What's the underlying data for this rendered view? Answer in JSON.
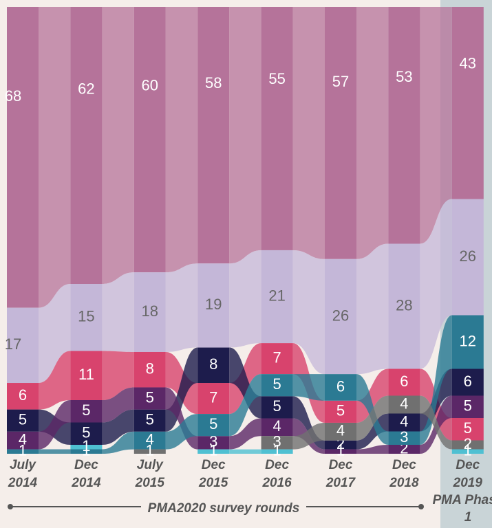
{
  "chart_data": {
    "type": "alluvial",
    "categories": [
      "July 2014",
      "Dec 2014",
      "July 2015",
      "Dec 2015",
      "Dec 2016",
      "Dec 2017",
      "Dec 2018",
      "Dec 2019"
    ],
    "series": [
      {
        "color": "#b5739a",
        "values": [
          68,
          62,
          60,
          58,
          55,
          57,
          53,
          43
        ]
      },
      {
        "color": "#c4b7d8",
        "values": [
          17,
          15,
          18,
          19,
          21,
          26,
          28,
          26
        ]
      },
      {
        "color": "#d8436d",
        "values": [
          6,
          11,
          8,
          7,
          7,
          5,
          6,
          5
        ]
      },
      {
        "color": "#1d1c4c",
        "values": [
          5,
          5,
          5,
          8,
          5,
          2,
          4,
          6
        ]
      },
      {
        "color": "#5b2767",
        "values": [
          4,
          5,
          5,
          3,
          4,
          1,
          2,
          5
        ]
      },
      {
        "color": "#2b7a93",
        "values": [
          1,
          1,
          4,
          5,
          5,
          6,
          3,
          12
        ]
      },
      {
        "color": "#707070",
        "values": [
          null,
          null,
          1,
          null,
          3,
          4,
          4,
          2
        ]
      },
      {
        "color": "#4fc0d2",
        "values": [
          null,
          1,
          null,
          1,
          1,
          null,
          null,
          1
        ]
      }
    ],
    "axis_label": "PMA2020 survey rounds",
    "annotation": "PMA Phase 1"
  }
}
